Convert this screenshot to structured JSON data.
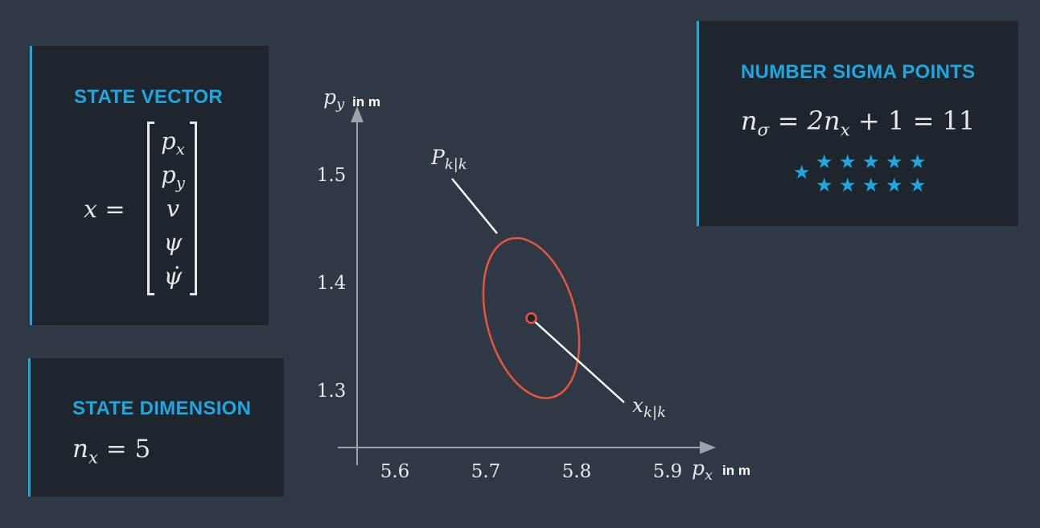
{
  "state_vector": {
    "title": "STATE VECTOR",
    "lhs": "x =",
    "components": [
      "p",
      "p",
      "v",
      "ψ",
      "ψ̇"
    ],
    "component_subscripts": [
      "x",
      "y",
      "",
      "",
      ""
    ]
  },
  "state_dimension": {
    "title": "STATE DIMENSION",
    "symbol": "n",
    "subscript": "x",
    "rhs": "= 5"
  },
  "sigma_points": {
    "title": "NUMBER SIGMA POINTS",
    "symbol": "n",
    "subscript": "σ",
    "middle": "= 2n",
    "middle_subscript": "x",
    "rhs": "+ 1 = 11",
    "star_count": 11,
    "star_color": "#1ea7e0"
  },
  "colors": {
    "background": "#2e3945",
    "panel": "#1e252c",
    "accent": "#1ea7e0",
    "ellipse": "#e8543c",
    "axis": "#9aa4ad"
  },
  "chart_data": {
    "type": "scatter",
    "x_ticks": [
      5.6,
      5.7,
      5.8,
      5.9
    ],
    "y_ticks": [
      1.3,
      1.4,
      1.5
    ],
    "x_axis": {
      "name": "p",
      "subscript": "x",
      "unit": "in m"
    },
    "y_axis": {
      "name": "p",
      "subscript": "y",
      "unit": "in m"
    },
    "mean": {
      "x": 5.75,
      "y": 1.367,
      "label": "x",
      "label_subscript": "k|k"
    },
    "covariance_ellipse": {
      "label": "P",
      "label_subscript": "k|k",
      "center": {
        "x": 5.75,
        "y": 1.367
      },
      "semi_axes_data": {
        "x": 0.068,
        "y": 0.076
      },
      "rotation_deg": -15
    },
    "grid": false
  }
}
